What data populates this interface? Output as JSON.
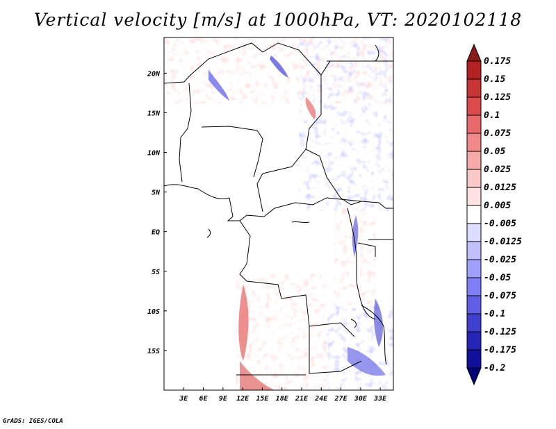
{
  "title": "Vertical velocity [m/s] at 1000hPa, VT: 2020102118",
  "credit": "GrADS: IGES/COLA",
  "map": {
    "lon_ticks": [
      "3E",
      "6E",
      "9E",
      "12E",
      "15E",
      "18E",
      "21E",
      "24E",
      "27E",
      "30E",
      "33E"
    ],
    "lat_ticks": [
      "20N",
      "15N",
      "10N",
      "5N",
      "EQ",
      "5S",
      "10S",
      "15S"
    ],
    "lon_values": [
      3,
      6,
      9,
      12,
      15,
      18,
      21,
      24,
      27,
      30,
      33
    ],
    "lat_values": [
      20,
      15,
      10,
      5,
      0,
      -5,
      -10,
      -15
    ],
    "lon_range": [
      0,
      35
    ],
    "lat_range": [
      -20,
      24.5
    ]
  },
  "colorbar": {
    "labels": [
      "0.175",
      "0.15",
      "0.125",
      "0.1",
      "0.075",
      "0.05",
      "0.025",
      "0.0125",
      "0.005",
      "-0.005",
      "-0.0125",
      "-0.025",
      "-0.05",
      "-0.075",
      "-0.1",
      "-0.125",
      "-0.175",
      "-0.2"
    ],
    "colors": [
      "#8b1a1a",
      "#b22222",
      "#c93434",
      "#dc4b4b",
      "#e86a6a",
      "#f08a8a",
      "#f6a9a9",
      "#fac7c7",
      "#fde2e2",
      "#ffffff",
      "#dcdcff",
      "#c0c0ff",
      "#a0a0ff",
      "#7f7ff5",
      "#5f5fe6",
      "#4040d0",
      "#2525b8",
      "#10109a",
      "#00007a"
    ]
  }
}
